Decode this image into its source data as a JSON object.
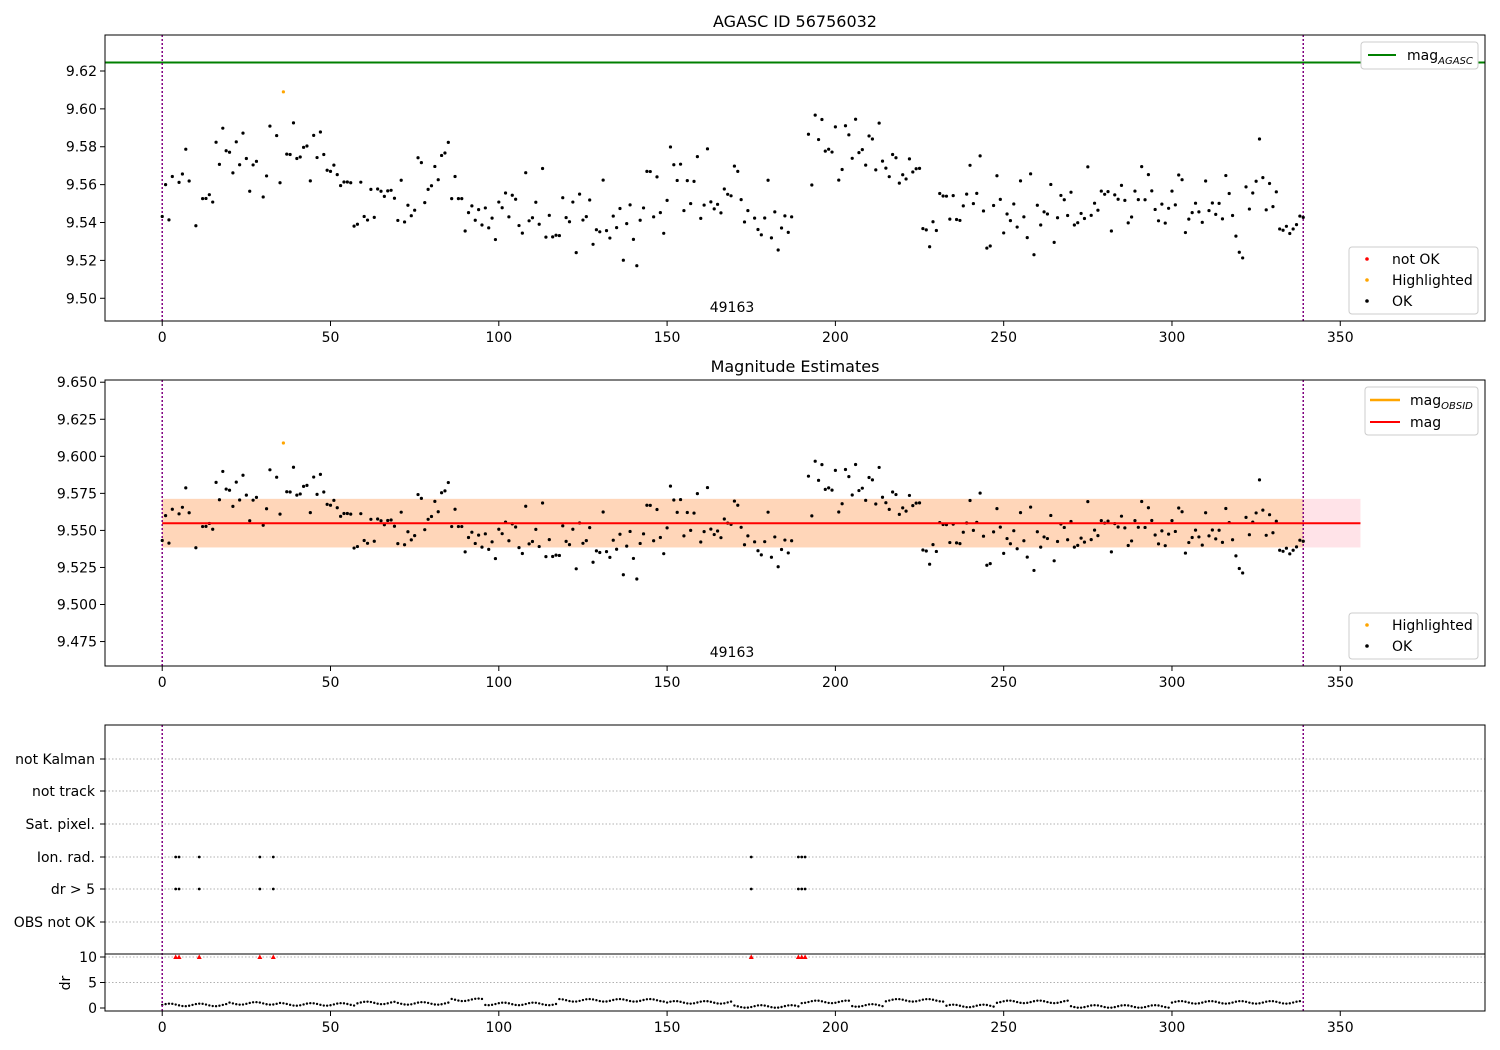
{
  "figure": {
    "panels": [
      "agasc",
      "estimates",
      "flags"
    ]
  },
  "chart_data": [
    {
      "type": "scatter",
      "title": "AGASC ID 56756032",
      "xlabel": "",
      "ylabel": "",
      "xlim": [
        -17,
        393
      ],
      "ylim": [
        9.488,
        9.639
      ],
      "xticks": [
        0,
        50,
        100,
        150,
        200,
        250,
        300,
        350
      ],
      "yticks": [
        9.5,
        9.52,
        9.54,
        9.56,
        9.58,
        9.6,
        9.62
      ],
      "ytick_decimals": 2,
      "grid": false,
      "vlines": [
        0,
        339
      ],
      "hline": {
        "name": "mag",
        "subscript": "AGASC",
        "value": 9.6245,
        "color": "#008000"
      },
      "obsid_label": {
        "text": "49163",
        "x": 169
      },
      "legend_upper": {
        "placement": "top-right",
        "entries": [
          {
            "label": "mag",
            "subscript": "AGASC",
            "kind": "line",
            "color": "#008000"
          }
        ]
      },
      "legend_lower": {
        "placement": "lower-right",
        "entries": [
          {
            "label": "not OK",
            "kind": "dot",
            "color": "#ff0000"
          },
          {
            "label": "Highlighted",
            "kind": "dot",
            "color": "#ffa500"
          },
          {
            "label": "OK",
            "kind": "dot",
            "color": "#000000"
          }
        ]
      },
      "series": [
        {
          "name": "OK",
          "color": "#000000",
          "source": "mag_estimates"
        },
        {
          "name": "Highlighted",
          "color": "#ffa500",
          "points": [
            [
              36,
              9.609
            ]
          ]
        }
      ]
    },
    {
      "type": "scatter",
      "title": "Magnitude Estimates",
      "xlabel": "",
      "ylabel": "",
      "xlim": [
        -17,
        393
      ],
      "ylim": [
        9.4585,
        9.6515
      ],
      "xticks": [
        0,
        50,
        100,
        150,
        200,
        250,
        300,
        350
      ],
      "yticks": [
        9.475,
        9.5,
        9.525,
        9.55,
        9.575,
        9.6,
        9.625,
        9.65
      ],
      "ytick_decimals": 3,
      "grid": false,
      "vlines": [
        0,
        339
      ],
      "mag_line": {
        "value": 9.5548,
        "x": [
          0,
          356
        ],
        "color": "#ff0000"
      },
      "mag_band": {
        "low": 9.5385,
        "high": 9.5713,
        "x": [
          0,
          356
        ]
      },
      "obsid_label": {
        "text": "49163",
        "x": 169
      },
      "legend_upper": {
        "placement": "top-right",
        "entries": [
          {
            "label": "mag",
            "subscript": "OBSID",
            "kind": "line",
            "color": "#ffa500"
          },
          {
            "label": "mag",
            "subscript": "",
            "kind": "line",
            "color": "#ff0000"
          }
        ]
      },
      "legend_lower": {
        "placement": "lower-right",
        "entries": [
          {
            "label": "Highlighted",
            "kind": "dot",
            "color": "#ffa500"
          },
          {
            "label": "OK",
            "kind": "dot",
            "color": "#000000"
          }
        ]
      },
      "series": [
        {
          "name": "OK",
          "color": "#000000",
          "source": "mag_estimates"
        },
        {
          "name": "Highlighted",
          "color": "#ffa500",
          "points": [
            [
              36,
              9.609
            ]
          ]
        }
      ]
    },
    {
      "type": "scatter",
      "title": "",
      "xlabel": "",
      "ylabel": "dr",
      "xlim": [
        -17,
        393
      ],
      "xticks": [
        0,
        50,
        100,
        150,
        200,
        250,
        300,
        350
      ],
      "vlines": [
        0,
        339
      ],
      "flag_categories": [
        "not Kalman",
        "not track",
        "Sat. pixel.",
        "Ion. rad.",
        "dr > 5",
        "OBS not OK"
      ],
      "flag_points": {
        "Ion. rad.": [
          4,
          5,
          11,
          29,
          33,
          175,
          189,
          190,
          191
        ],
        "dr > 5": [
          4,
          5,
          11,
          29,
          33,
          175,
          189,
          190,
          191
        ]
      },
      "dr_ylim": [
        -0.5,
        11
      ],
      "dr_yticks": [
        0,
        5,
        10
      ],
      "dr_clipped_at_10": [
        4,
        5,
        11,
        29,
        33,
        175,
        189,
        190,
        191
      ],
      "dr_segments": [
        {
          "x": [
            0,
            20
          ],
          "level": 0.6
        },
        {
          "x": [
            20,
            36
          ],
          "level": 0.9
        },
        {
          "x": [
            36,
            58
          ],
          "level": 0.7
        },
        {
          "x": [
            58,
            70
          ],
          "level": 1.0
        },
        {
          "x": [
            70,
            86
          ],
          "level": 0.9
        },
        {
          "x": [
            86,
            96
          ],
          "level": 1.6
        },
        {
          "x": [
            96,
            118
          ],
          "level": 0.8
        },
        {
          "x": [
            118,
            150
          ],
          "level": 1.5
        },
        {
          "x": [
            150,
            170
          ],
          "level": 1.1
        },
        {
          "x": [
            170,
            190
          ],
          "level": 0.3
        },
        {
          "x": [
            190,
            205
          ],
          "level": 1.2
        },
        {
          "x": [
            205,
            215
          ],
          "level": 0.5
        },
        {
          "x": [
            215,
            233
          ],
          "level": 1.5
        },
        {
          "x": [
            233,
            248
          ],
          "level": 0.4
        },
        {
          "x": [
            248,
            270
          ],
          "level": 1.2
        },
        {
          "x": [
            270,
            300
          ],
          "level": 0.3
        },
        {
          "x": [
            300,
            339
          ],
          "level": 1.1
        }
      ]
    }
  ],
  "mag_estimates": [
    [
      0,
      9.5432
    ],
    [
      1,
      9.56
    ],
    [
      2,
      9.5414
    ],
    [
      3,
      9.5643
    ],
    [
      5,
      9.5612
    ],
    [
      6,
      9.5656
    ],
    [
      7,
      9.5787
    ],
    [
      8,
      9.5619
    ],
    [
      10,
      9.5383
    ],
    [
      12,
      9.5526
    ],
    [
      13,
      9.5527
    ],
    [
      14,
      9.5547
    ],
    [
      15,
      9.5508
    ],
    [
      16,
      9.5824
    ],
    [
      17,
      9.5707
    ],
    [
      18,
      9.5898
    ],
    [
      19,
      9.5779
    ],
    [
      20,
      9.5771
    ],
    [
      21,
      9.5662
    ],
    [
      22,
      9.5826
    ],
    [
      23,
      9.5705
    ],
    [
      24,
      9.5872
    ],
    [
      25,
      9.5738
    ],
    [
      26,
      9.5565
    ],
    [
      27,
      9.5704
    ],
    [
      28,
      9.5723
    ],
    [
      30,
      9.5535
    ],
    [
      31,
      9.5646
    ],
    [
      32,
      9.5909
    ],
    [
      34,
      9.5859
    ],
    [
      35,
      9.561
    ],
    [
      37,
      9.5761
    ],
    [
      38,
      9.5759
    ],
    [
      39,
      9.5926
    ],
    [
      40,
      9.5738
    ],
    [
      41,
      9.5746
    ],
    [
      42,
      9.5797
    ],
    [
      43,
      9.5804
    ],
    [
      44,
      9.562
    ],
    [
      45,
      9.586
    ],
    [
      46,
      9.5743
    ],
    [
      47,
      9.5878
    ],
    [
      48,
      9.5759
    ],
    [
      49,
      9.5676
    ],
    [
      50,
      9.567
    ],
    [
      51,
      9.5703
    ],
    [
      52,
      9.5653
    ],
    [
      53,
      9.5595
    ],
    [
      54,
      9.5614
    ],
    [
      55,
      9.5614
    ],
    [
      56,
      9.561
    ],
    [
      57,
      9.5381
    ],
    [
      58,
      9.5391
    ],
    [
      59,
      9.5613
    ],
    [
      60,
      9.5432
    ],
    [
      61,
      9.5413
    ],
    [
      62,
      9.5575
    ],
    [
      63,
      9.5427
    ],
    [
      64,
      9.5577
    ],
    [
      65,
      9.5565
    ],
    [
      66,
      9.5538
    ],
    [
      67,
      9.5567
    ],
    [
      68,
      9.557
    ],
    [
      69,
      9.5528
    ],
    [
      70,
      9.5411
    ],
    [
      71,
      9.5623
    ],
    [
      72,
      9.5403
    ],
    [
      73,
      9.5491
    ],
    [
      74,
      9.5436
    ],
    [
      75,
      9.5465
    ],
    [
      76,
      9.5742
    ],
    [
      77,
      9.5716
    ],
    [
      78,
      9.5505
    ],
    [
      79,
      9.5575
    ],
    [
      80,
      9.5594
    ],
    [
      81,
      9.5696
    ],
    [
      82,
      9.5626
    ],
    [
      83,
      9.5754
    ],
    [
      84,
      9.5767
    ],
    [
      85,
      9.5823
    ],
    [
      86,
      9.5526
    ],
    [
      87,
      9.5643
    ],
    [
      88,
      9.5526
    ],
    [
      89,
      9.5526
    ],
    [
      90,
      9.5355
    ],
    [
      91,
      9.5452
    ],
    [
      92,
      9.5488
    ],
    [
      93,
      9.5412
    ],
    [
      94,
      9.5468
    ],
    [
      95,
      9.5387
    ],
    [
      96,
      9.5477
    ],
    [
      97,
      9.5372
    ],
    [
      98,
      9.5423
    ],
    [
      99,
      9.531
    ],
    [
      100,
      9.5508
    ],
    [
      101,
      9.5478
    ],
    [
      102,
      9.5556
    ],
    [
      103,
      9.543
    ],
    [
      104,
      9.5544
    ],
    [
      105,
      9.5523
    ],
    [
      106,
      9.5384
    ],
    [
      107,
      9.5344
    ],
    [
      108,
      9.5663
    ],
    [
      109,
      9.5409
    ],
    [
      110,
      9.5425
    ],
    [
      111,
      9.5507
    ],
    [
      112,
      9.5391
    ],
    [
      113,
      9.5685
    ],
    [
      114,
      9.5323
    ],
    [
      115,
      9.5438
    ],
    [
      116,
      9.5324
    ],
    [
      117,
      9.5333
    ],
    [
      118,
      9.5331
    ],
    [
      119,
      9.5531
    ],
    [
      120,
      9.5426
    ],
    [
      121,
      9.5404
    ],
    [
      122,
      9.5508
    ],
    [
      123,
      9.5241
    ],
    [
      124,
      9.555
    ],
    [
      125,
      9.5413
    ],
    [
      126,
      9.5431
    ],
    [
      127,
      9.5519
    ],
    [
      128,
      9.5285
    ],
    [
      129,
      9.5362
    ],
    [
      130,
      9.5351
    ],
    [
      131,
      9.5624
    ],
    [
      132,
      9.5357
    ],
    [
      133,
      9.5318
    ],
    [
      134,
      9.5434
    ],
    [
      135,
      9.5373
    ],
    [
      136,
      9.5474
    ],
    [
      137,
      9.5201
    ],
    [
      138,
      9.5394
    ],
    [
      139,
      9.5493
    ],
    [
      140,
      9.5311
    ],
    [
      141,
      9.5172
    ],
    [
      142,
      9.5412
    ],
    [
      143,
      9.5477
    ],
    [
      144,
      9.567
    ],
    [
      145,
      9.5669
    ],
    [
      146,
      9.543
    ],
    [
      147,
      9.5641
    ],
    [
      148,
      9.5452
    ],
    [
      149,
      9.5343
    ],
    [
      150,
      9.5517
    ],
    [
      151,
      9.5799
    ],
    [
      152,
      9.5705
    ],
    [
      153,
      9.5622
    ],
    [
      154,
      9.5708
    ],
    [
      155,
      9.5463
    ],
    [
      156,
      9.5621
    ],
    [
      157,
      9.55
    ],
    [
      158,
      9.5617
    ],
    [
      159,
      9.5748
    ],
    [
      160,
      9.5422
    ],
    [
      161,
      9.5492
    ],
    [
      162,
      9.5789
    ],
    [
      163,
      9.5509
    ],
    [
      164,
      9.5472
    ],
    [
      165,
      9.5496
    ],
    [
      166,
      9.5451
    ],
    [
      167,
      9.5577
    ],
    [
      168,
      9.5549
    ],
    [
      169,
      9.5541
    ],
    [
      170,
      9.5698
    ],
    [
      171,
      9.567
    ],
    [
      172,
      9.5521
    ],
    [
      173,
      9.5403
    ],
    [
      174,
      9.5463
    ],
    [
      176,
      9.5423
    ],
    [
      177,
      9.5363
    ],
    [
      178,
      9.5335
    ],
    [
      179,
      9.5424
    ],
    [
      180,
      9.5623
    ],
    [
      181,
      9.5319
    ],
    [
      182,
      9.5456
    ],
    [
      183,
      9.5255
    ],
    [
      184,
      9.5371
    ],
    [
      185,
      9.5435
    ],
    [
      186,
      9.5348
    ],
    [
      187,
      9.543
    ],
    [
      192,
      9.5866
    ],
    [
      193,
      9.5598
    ],
    [
      194,
      9.5967
    ],
    [
      195,
      9.5838
    ],
    [
      196,
      9.5944
    ],
    [
      197,
      9.5777
    ],
    [
      198,
      9.5787
    ],
    [
      199,
      9.5772
    ],
    [
      200,
      9.5905
    ],
    [
      201,
      9.5624
    ],
    [
      202,
      9.568
    ],
    [
      203,
      9.5911
    ],
    [
      204,
      9.5863
    ],
    [
      205,
      9.5739
    ],
    [
      206,
      9.5945
    ],
    [
      207,
      9.5769
    ],
    [
      208,
      9.5785
    ],
    [
      209,
      9.5703
    ],
    [
      210,
      9.5857
    ],
    [
      211,
      9.5841
    ],
    [
      212,
      9.5678
    ],
    [
      213,
      9.5925
    ],
    [
      214,
      9.5724
    ],
    [
      215,
      9.5687
    ],
    [
      216,
      9.5642
    ],
    [
      217,
      9.5759
    ],
    [
      218,
      9.5742
    ],
    [
      219,
      9.5608
    ],
    [
      220,
      9.5652
    ],
    [
      221,
      9.563
    ],
    [
      222,
      9.5736
    ],
    [
      223,
      9.5667
    ],
    [
      224,
      9.5684
    ],
    [
      225,
      9.5686
    ],
    [
      226,
      9.5368
    ],
    [
      227,
      9.5361
    ],
    [
      228,
      9.5272
    ],
    [
      229,
      9.5404
    ],
    [
      230,
      9.5358
    ],
    [
      231,
      9.5553
    ],
    [
      232,
      9.554
    ],
    [
      233,
      9.5539
    ],
    [
      234,
      9.5418
    ],
    [
      235,
      9.5542
    ],
    [
      236,
      9.5416
    ],
    [
      237,
      9.5411
    ],
    [
      238,
      9.5488
    ],
    [
      239,
      9.555
    ],
    [
      240,
      9.5702
    ],
    [
      241,
      9.55
    ],
    [
      242,
      9.5554
    ],
    [
      243,
      9.5752
    ],
    [
      244,
      9.5461
    ],
    [
      245,
      9.5265
    ],
    [
      246,
      9.5276
    ],
    [
      247,
      9.549
    ],
    [
      248,
      9.5647
    ],
    [
      249,
      9.5522
    ],
    [
      250,
      9.5345
    ],
    [
      251,
      9.5445
    ],
    [
      252,
      9.541
    ],
    [
      253,
      9.5498
    ],
    [
      254,
      9.5376
    ],
    [
      255,
      9.562
    ],
    [
      256,
      9.543
    ],
    [
      257,
      9.532
    ],
    [
      258,
      9.5657
    ],
    [
      259,
      9.523
    ],
    [
      260,
      9.5491
    ],
    [
      261,
      9.5387
    ],
    [
      262,
      9.5456
    ],
    [
      263,
      9.5445
    ],
    [
      264,
      9.5601
    ],
    [
      265,
      9.5295
    ],
    [
      266,
      9.5425
    ],
    [
      267,
      9.5543
    ],
    [
      268,
      9.552
    ],
    [
      269,
      9.5437
    ],
    [
      270,
      9.556
    ],
    [
      271,
      9.5387
    ],
    [
      272,
      9.5399
    ],
    [
      273,
      9.5448
    ],
    [
      274,
      9.5421
    ],
    [
      275,
      9.5694
    ],
    [
      276,
      9.5438
    ],
    [
      277,
      9.5502
    ],
    [
      278,
      9.5465
    ],
    [
      279,
      9.5566
    ],
    [
      280,
      9.5549
    ],
    [
      281,
      9.5563
    ],
    [
      282,
      9.5355
    ],
    [
      283,
      9.5546
    ],
    [
      284,
      9.5523
    ],
    [
      285,
      9.5596
    ],
    [
      286,
      9.5517
    ],
    [
      287,
      9.5398
    ],
    [
      288,
      9.5429
    ],
    [
      289,
      9.5566
    ],
    [
      290,
      9.5521
    ],
    [
      291,
      9.5695
    ],
    [
      292,
      9.552
    ],
    [
      293,
      9.5653
    ],
    [
      294,
      9.5567
    ],
    [
      295,
      9.5469
    ],
    [
      296,
      9.5409
    ],
    [
      297,
      9.5497
    ],
    [
      298,
      9.5397
    ],
    [
      299,
      9.5475
    ],
    [
      300,
      9.5566
    ],
    [
      301,
      9.5493
    ],
    [
      302,
      9.5651
    ],
    [
      303,
      9.5626
    ],
    [
      304,
      9.5347
    ],
    [
      305,
      9.5418
    ],
    [
      306,
      9.5452
    ],
    [
      307,
      9.5502
    ],
    [
      308,
      9.5456
    ],
    [
      309,
      9.5401
    ],
    [
      310,
      9.5619
    ],
    [
      311,
      9.5463
    ],
    [
      312,
      9.5503
    ],
    [
      313,
      9.5443
    ],
    [
      314,
      9.5501
    ],
    [
      315,
      9.5419
    ],
    [
      316,
      9.5648
    ],
    [
      317,
      9.5553
    ],
    [
      318,
      9.5437
    ],
    [
      319,
      9.5328
    ],
    [
      320,
      9.5243
    ],
    [
      321,
      9.5213
    ],
    [
      322,
      9.5588
    ],
    [
      323,
      9.5471
    ],
    [
      324,
      9.5556
    ],
    [
      325,
      9.5618
    ],
    [
      326,
      9.5841
    ],
    [
      327,
      9.5637
    ],
    [
      328,
      9.5467
    ],
    [
      329,
      9.5606
    ],
    [
      330,
      9.5484
    ],
    [
      331,
      9.5562
    ],
    [
      332,
      9.5366
    ],
    [
      333,
      9.5359
    ],
    [
      334,
      9.538
    ],
    [
      335,
      9.5342
    ],
    [
      336,
      9.5366
    ],
    [
      337,
      9.5389
    ],
    [
      338,
      9.5434
    ],
    [
      339,
      9.5427
    ]
  ]
}
